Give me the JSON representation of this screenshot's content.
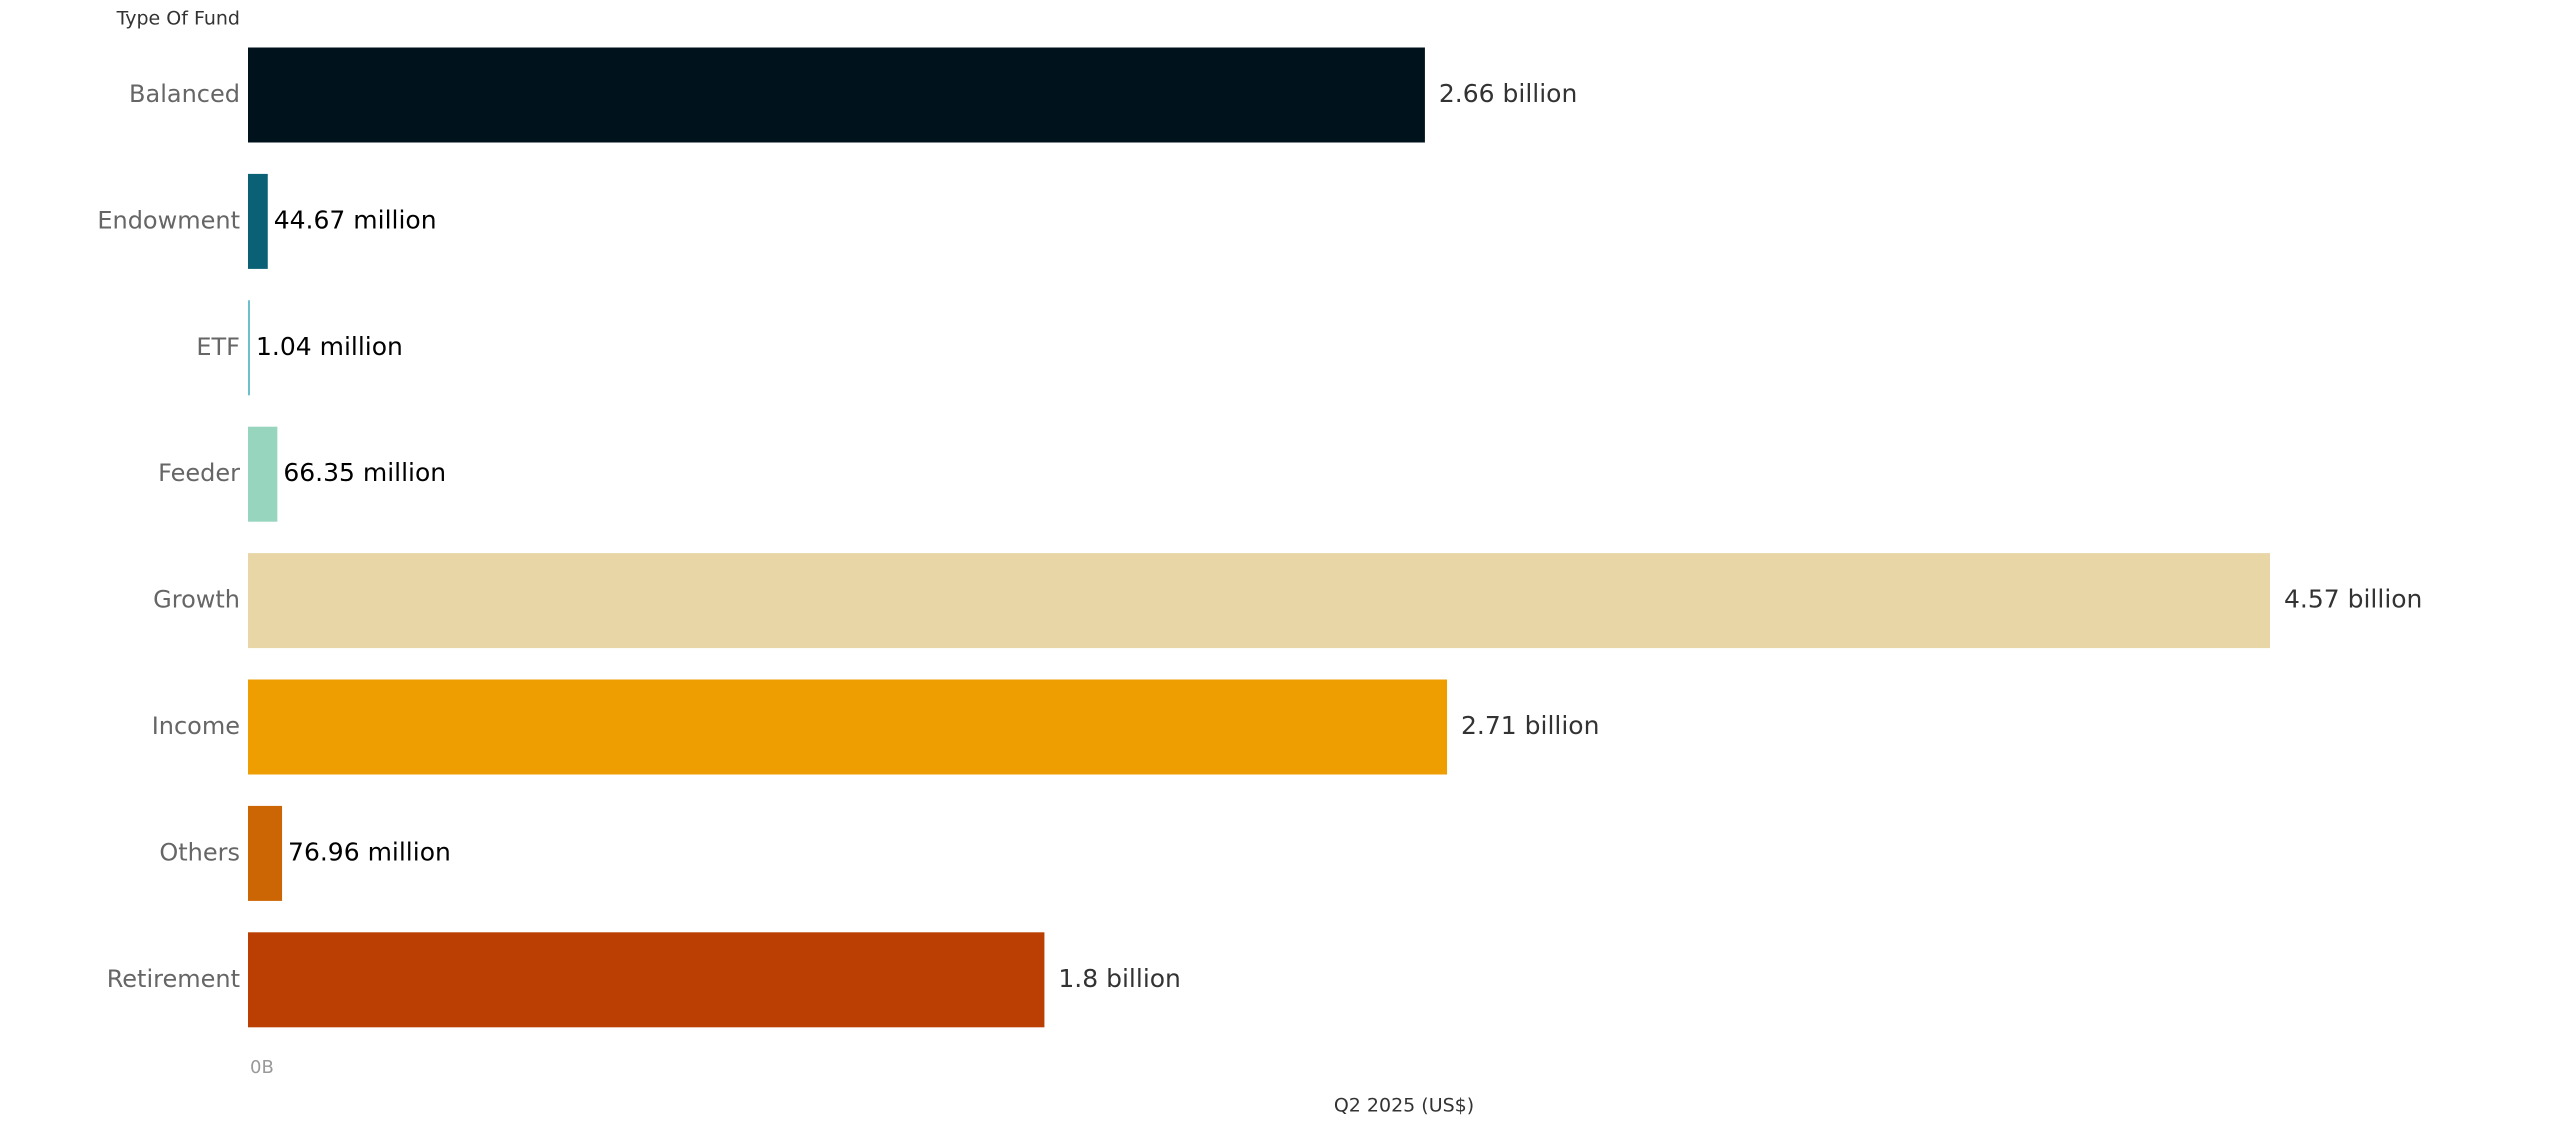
{
  "chart_data": {
    "type": "hbar",
    "y_label": "Type Of Fund",
    "x_label": "Q2 2025 (US$)",
    "categories": [
      "Balanced",
      "Endowment",
      "ETF",
      "Feeder",
      "Growth",
      "Income",
      "Others",
      "Retirement"
    ],
    "values": [
      2660000000,
      44670000,
      1040000,
      66350000,
      4570000000,
      2710000000,
      76960000,
      1800000000
    ],
    "value_labels": [
      "2.66 billion",
      "44.67 million",
      "1.04 million",
      "66.35 million",
      "4.57 billion",
      "2.71 billion",
      "76.96 million",
      "1.8 billion"
    ],
    "colors": [
      "#00131c",
      "#0a6075",
      "#6cc0c8",
      "#97d5be",
      "#e8d6a7",
      "#ee9e00",
      "#cc6504",
      "#bb3e03"
    ],
    "xlim": [
      0,
      5000000000
    ],
    "xticks": [
      {
        "value": 0,
        "label": "0B"
      }
    ]
  }
}
